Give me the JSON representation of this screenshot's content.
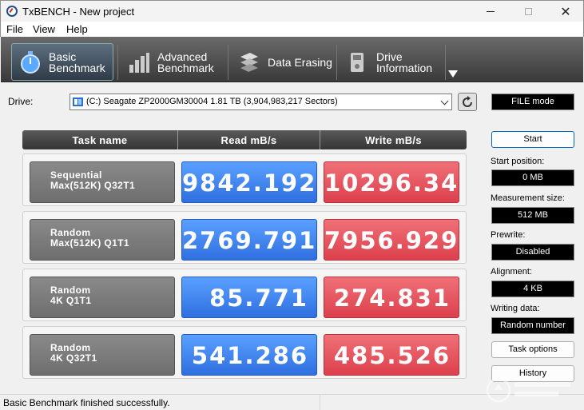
{
  "window": {
    "title": "TxBENCH - New project"
  },
  "menu": {
    "items": [
      "File",
      "View",
      "Help"
    ]
  },
  "toolbar": {
    "tabs": [
      {
        "label": "Basic\nBenchmark",
        "icon": "stopwatch-icon",
        "active": true
      },
      {
        "label": "Advanced\nBenchmark",
        "icon": "bar-chart-icon",
        "active": false
      },
      {
        "label": "Data Erasing",
        "icon": "eraser-icon",
        "active": false
      },
      {
        "label": "Drive\nInformation",
        "icon": "drive-info-icon",
        "active": false
      }
    ]
  },
  "drive": {
    "label": "Drive:",
    "selected": "(C:) Seagate ZP2000GM30004  1.81 TB (3,904,983,217 Sectors)",
    "mode": "FILE mode"
  },
  "table": {
    "headers": [
      "Task name",
      "Read mB/s",
      "Write mB/s"
    ],
    "rows": [
      {
        "task": "Sequential\nMax(512K) Q32T1",
        "read": "9842.192",
        "write": "10296.34"
      },
      {
        "task": "Random\nMax(512K) Q1T1",
        "read": "2769.791",
        "write": "7956.929"
      },
      {
        "task": "Random\n4K Q1T1",
        "read": "85.771",
        "write": "274.831"
      },
      {
        "task": "Random\n4K Q32T1",
        "read": "541.286",
        "write": "485.526"
      }
    ]
  },
  "panel": {
    "start_label": "Start",
    "start_position_label": "Start position:",
    "start_position": "0 MB",
    "measurement_size_label": "Measurement size:",
    "measurement_size": "512 MB",
    "prewrite_label": "Prewrite:",
    "prewrite": "Disabled",
    "alignment_label": "Alignment:",
    "alignment": "4 KB",
    "writing_data_label": "Writing data:",
    "writing_data": "Random number",
    "task_options_label": "Task options",
    "history_label": "History"
  },
  "status": {
    "text": "Basic Benchmark finished successfully."
  },
  "colors": {
    "read": "#3a7ff0",
    "write": "#e44b55",
    "toolbar": "#4a4a4a"
  }
}
